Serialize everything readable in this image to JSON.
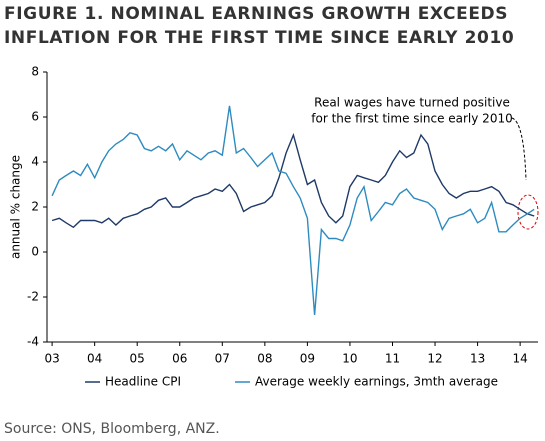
{
  "chart_data": {
    "type": "line",
    "title": [
      "FIGURE 1. NOMINAL EARNINGS GROWTH EXCEEDS",
      "INFLATION FOR THE FIRST TIME SINCE EARLY 2010"
    ],
    "ylabel": "annual % change",
    "annotation": [
      "Real wages have turned positive",
      "for the first time since early 2010"
    ],
    "source": "Source: ONS, Bloomberg, ANZ.",
    "x": [
      3,
      3.17,
      3.33,
      3.5,
      3.67,
      3.83,
      4,
      4.17,
      4.33,
      4.5,
      4.67,
      4.83,
      5,
      5.17,
      5.33,
      5.5,
      5.67,
      5.83,
      6,
      6.17,
      6.33,
      6.5,
      6.67,
      6.83,
      7,
      7.17,
      7.33,
      7.5,
      7.67,
      7.83,
      8,
      8.17,
      8.33,
      8.5,
      8.67,
      8.83,
      9,
      9.17,
      9.33,
      9.5,
      9.67,
      9.83,
      10,
      10.17,
      10.33,
      10.5,
      10.67,
      10.83,
      11,
      11.17,
      11.33,
      11.5,
      11.67,
      11.83,
      12,
      12.17,
      12.33,
      12.5,
      12.67,
      12.83,
      13,
      13.17,
      13.33,
      13.5,
      13.67,
      13.83,
      14,
      14.17,
      14.33
    ],
    "series": [
      {
        "name": "Headline CPI",
        "color": "#1f3a68",
        "values": [
          1.4,
          1.5,
          1.3,
          1.1,
          1.4,
          1.4,
          1.4,
          1.3,
          1.5,
          1.2,
          1.5,
          1.6,
          1.7,
          1.9,
          2.0,
          2.3,
          2.4,
          2.0,
          2.0,
          2.2,
          2.4,
          2.5,
          2.6,
          2.8,
          2.7,
          3.0,
          2.6,
          1.8,
          2.0,
          2.1,
          2.2,
          2.5,
          3.3,
          4.4,
          5.2,
          4.1,
          3.0,
          3.2,
          2.2,
          1.6,
          1.3,
          1.6,
          2.9,
          3.4,
          3.3,
          3.2,
          3.1,
          3.4,
          4.0,
          4.5,
          4.2,
          4.4,
          5.2,
          4.8,
          3.6,
          3.0,
          2.6,
          2.4,
          2.6,
          2.7,
          2.7,
          2.8,
          2.9,
          2.7,
          2.2,
          2.1,
          1.9,
          1.7,
          1.6
        ]
      },
      {
        "name": "Average weekly earnings, 3mth average",
        "color": "#2e8bc0",
        "values": [
          2.5,
          3.2,
          3.4,
          3.6,
          3.4,
          3.9,
          3.3,
          4.0,
          4.5,
          4.8,
          5.0,
          5.3,
          5.2,
          4.6,
          4.5,
          4.7,
          4.5,
          4.8,
          4.1,
          4.5,
          4.3,
          4.1,
          4.4,
          4.5,
          4.3,
          6.5,
          4.4,
          4.6,
          4.2,
          3.8,
          4.1,
          4.4,
          3.6,
          3.5,
          2.9,
          2.4,
          1.5,
          -2.8,
          1.0,
          0.6,
          0.6,
          0.5,
          1.2,
          2.4,
          2.9,
          1.4,
          1.8,
          2.2,
          2.1,
          2.6,
          2.8,
          2.4,
          2.3,
          2.2,
          1.9,
          1.0,
          1.5,
          1.6,
          1.7,
          1.9,
          1.3,
          1.5,
          2.2,
          0.9,
          0.9,
          1.2,
          1.5,
          1.7,
          1.9
        ]
      }
    ],
    "xlim": [
      2.88,
      14.42
    ],
    "xticks": [
      {
        "value": 3,
        "label": "03"
      },
      {
        "value": 4,
        "label": "04"
      },
      {
        "value": 5,
        "label": "05"
      },
      {
        "value": 6,
        "label": "06"
      },
      {
        "value": 7,
        "label": "07"
      },
      {
        "value": 8,
        "label": "08"
      },
      {
        "value": 9,
        "label": "09"
      },
      {
        "value": 10,
        "label": "10"
      },
      {
        "value": 11,
        "label": "11"
      },
      {
        "value": 12,
        "label": "12"
      },
      {
        "value": 13,
        "label": "13"
      },
      {
        "value": 14,
        "label": "14"
      }
    ],
    "ylim": [
      -4,
      8
    ],
    "yticks": [
      -4,
      -2,
      0,
      2,
      4,
      6,
      8
    ],
    "grid": false
  }
}
